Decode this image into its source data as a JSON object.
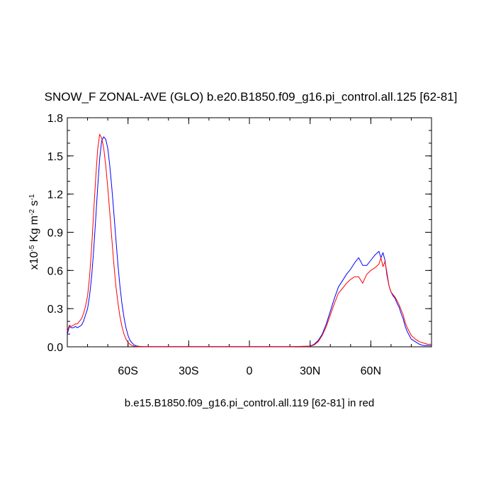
{
  "chart_data": {
    "type": "line",
    "title": "SNOW_F ZONAL-AVE (GLO) b.e20.B1850.f09_g16.pi_control.all.125 [62-81]",
    "ylabel": "x10-5 Kg m-2 s-1",
    "ylabel_parts": {
      "prefix": "x10",
      "exp1": "-5",
      "unit1": " Kg m",
      "exp2": "-2",
      "unit2": " s",
      "exp3": "-1"
    },
    "footer": "b.e15.B1850.f09_g16.pi_control.all.119 [62-81] in red",
    "xlim": [
      -90,
      90
    ],
    "ylim": [
      0,
      1.8
    ],
    "grid": false,
    "x_ticks": [
      {
        "value": -60,
        "label": "60S"
      },
      {
        "value": -30,
        "label": "30S"
      },
      {
        "value": 0,
        "label": "0"
      },
      {
        "value": 30,
        "label": "30N"
      },
      {
        "value": 60,
        "label": "60N"
      }
    ],
    "y_ticks": [
      {
        "value": 0,
        "label": "0.0"
      },
      {
        "value": 0.3,
        "label": "0.3"
      },
      {
        "value": 0.6,
        "label": "0.6"
      },
      {
        "value": 0.9,
        "label": "0.9"
      },
      {
        "value": 1.2,
        "label": "1.2"
      },
      {
        "value": 1.5,
        "label": "1.5"
      },
      {
        "value": 1.8,
        "label": "1.8"
      }
    ],
    "series": [
      {
        "color": "#0000ff",
        "x": [
          -90,
          -89,
          -88,
          -87,
          -86,
          -85,
          -84,
          -83,
          -82,
          -81,
          -80,
          -79,
          -78,
          -77,
          -76,
          -75,
          -74,
          -73,
          -72,
          -71,
          -70,
          -69,
          -68,
          -67,
          -66,
          -65,
          -64,
          -63,
          -62,
          -61,
          -60,
          -59,
          -58,
          -57,
          -56,
          -55,
          -54,
          -53,
          -52,
          -51,
          -50,
          -49,
          -48,
          -47,
          -46,
          -45,
          -44,
          -43,
          -42,
          -41,
          -40,
          -35,
          -30,
          -20,
          -10,
          0,
          10,
          20,
          30,
          32,
          34,
          36,
          38,
          40,
          42,
          44,
          46,
          48,
          50,
          52,
          54,
          56,
          58,
          60,
          62,
          64,
          65,
          66,
          67,
          68,
          69,
          70,
          71,
          72,
          73,
          74,
          75,
          76,
          77,
          78,
          79,
          80,
          82,
          84,
          86,
          88,
          90
        ],
        "y": [
          0.1,
          0.16,
          0.15,
          0.15,
          0.16,
          0.15,
          0.16,
          0.17,
          0.2,
          0.25,
          0.3,
          0.4,
          0.55,
          0.75,
          1.0,
          1.25,
          1.48,
          1.62,
          1.65,
          1.63,
          1.56,
          1.42,
          1.25,
          1.05,
          0.85,
          0.65,
          0.48,
          0.34,
          0.23,
          0.15,
          0.09,
          0.05,
          0.03,
          0.015,
          0.008,
          0.005,
          0.003,
          0.002,
          0.001,
          0.001,
          0.001,
          0.001,
          0.001,
          0.001,
          0.001,
          0.001,
          0.001,
          0.001,
          0.001,
          0.001,
          0.001,
          0.001,
          0.001,
          0.001,
          0.001,
          0.001,
          0.001,
          0.001,
          0.005,
          0.02,
          0.05,
          0.1,
          0.18,
          0.28,
          0.38,
          0.47,
          0.52,
          0.57,
          0.61,
          0.66,
          0.7,
          0.64,
          0.64,
          0.68,
          0.72,
          0.75,
          0.7,
          0.74,
          0.68,
          0.56,
          0.48,
          0.43,
          0.4,
          0.38,
          0.34,
          0.31,
          0.26,
          0.22,
          0.16,
          0.12,
          0.09,
          0.06,
          0.04,
          0.02,
          0.01,
          0.01,
          0.01
        ]
      },
      {
        "color": "#ff0000",
        "x": [
          -90,
          -89,
          -88,
          -87,
          -86,
          -85,
          -84,
          -83,
          -82,
          -81,
          -80,
          -79,
          -78,
          -77,
          -76,
          -75,
          -74,
          -73,
          -72,
          -71,
          -70,
          -69,
          -68,
          -67,
          -66,
          -65,
          -64,
          -63,
          -62,
          -61,
          -60,
          -59,
          -58,
          -57,
          -56,
          -55,
          -54,
          -53,
          -52,
          -51,
          -50,
          -49,
          -48,
          -47,
          -46,
          -45,
          -44,
          -43,
          -42,
          -41,
          -40,
          -35,
          -30,
          -20,
          -10,
          0,
          10,
          20,
          30,
          32,
          34,
          36,
          38,
          40,
          42,
          44,
          46,
          48,
          50,
          52,
          54,
          56,
          58,
          60,
          62,
          64,
          65,
          66,
          67,
          68,
          69,
          70,
          71,
          72,
          73,
          74,
          75,
          76,
          77,
          78,
          79,
          80,
          82,
          84,
          86,
          88,
          90
        ],
        "y": [
          0.12,
          0.17,
          0.16,
          0.17,
          0.18,
          0.18,
          0.2,
          0.22,
          0.26,
          0.32,
          0.4,
          0.55,
          0.78,
          1.05,
          1.32,
          1.55,
          1.67,
          1.64,
          1.56,
          1.42,
          1.25,
          1.05,
          0.85,
          0.65,
          0.48,
          0.35,
          0.24,
          0.16,
          0.1,
          0.06,
          0.035,
          0.02,
          0.01,
          0.005,
          0.003,
          0.002,
          0.001,
          0.001,
          0.001,
          0.001,
          0.001,
          0.001,
          0.001,
          0.001,
          0.001,
          0.001,
          0.001,
          0.001,
          0.001,
          0.001,
          0.001,
          0.001,
          0.001,
          0.001,
          0.001,
          0.001,
          0.001,
          0.001,
          0.004,
          0.015,
          0.04,
          0.09,
          0.16,
          0.25,
          0.34,
          0.42,
          0.46,
          0.5,
          0.53,
          0.55,
          0.55,
          0.5,
          0.57,
          0.6,
          0.62,
          0.65,
          0.7,
          0.63,
          0.67,
          0.58,
          0.48,
          0.43,
          0.41,
          0.39,
          0.36,
          0.33,
          0.29,
          0.25,
          0.19,
          0.15,
          0.12,
          0.09,
          0.06,
          0.04,
          0.03,
          0.02,
          0.02
        ]
      }
    ]
  }
}
